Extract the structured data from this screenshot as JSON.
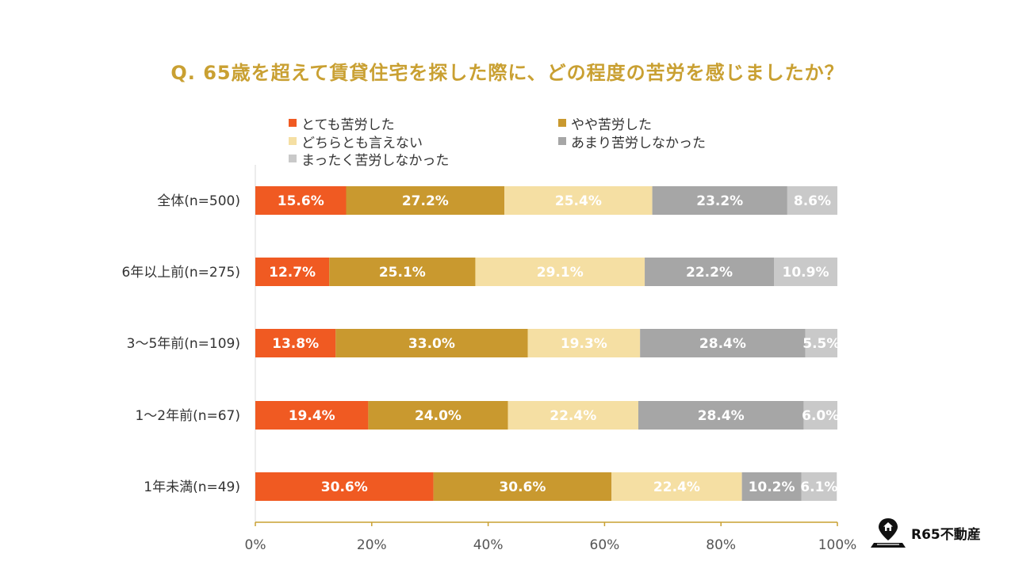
{
  "chart_data": {
    "type": "bar",
    "orientation": "horizontal",
    "stacked": true,
    "title": "Q. 65歳を超えて賃貸住宅を探した際に、どの程度の苦労を感じましたか？",
    "categories": [
      "全体(n=500)",
      "6年以上前(n=275)",
      "3～5年前(n=109)",
      "1～2年前(n=67)",
      "1年未満(n=49)"
    ],
    "series": [
      {
        "name": "とても苦労した",
        "color": "#f05a22",
        "values": [
          15.6,
          12.7,
          13.8,
          19.4,
          30.6
        ],
        "labels": [
          "15.6%",
          "12.7%",
          "13.8%",
          "19.4%",
          "30.6%"
        ]
      },
      {
        "name": "やや苦労した",
        "color": "#c9992f",
        "values": [
          27.2,
          25.1,
          33.0,
          24.0,
          30.6
        ],
        "labels": [
          "27.2%",
          "25.1%",
          "33.0%",
          "24.0%",
          "30.6%"
        ]
      },
      {
        "name": "どちらとも言えない",
        "color": "#f5dfa3",
        "values": [
          25.4,
          29.1,
          19.3,
          22.4,
          22.4
        ],
        "labels": [
          "25.4%",
          "29.1%",
          "19.3%",
          "22.4%",
          "22.4%"
        ]
      },
      {
        "name": "あまり苦労しなかった",
        "color": "#a6a6a6",
        "values": [
          23.2,
          22.2,
          28.4,
          28.4,
          10.2
        ],
        "labels": [
          "23.2%",
          "22.2%",
          "28.4%",
          "28.4%",
          "10.2%"
        ]
      },
      {
        "name": "まったく苦労しなかった",
        "color": "#c9c9c9",
        "values": [
          8.6,
          10.9,
          5.5,
          6.0,
          6.1
        ],
        "labels": [
          "8.6%",
          "10.9%",
          "5.5%",
          "6.0%",
          "6.1%"
        ]
      }
    ],
    "x_ticks": [
      "0%",
      "20%",
      "40%",
      "60%",
      "80%",
      "100%"
    ],
    "xlim": [
      0,
      100
    ],
    "legend_position": "top",
    "grid": false
  },
  "brand": {
    "name": "R65不動産",
    "icon": "home-pin-icon",
    "color": "#111111"
  }
}
